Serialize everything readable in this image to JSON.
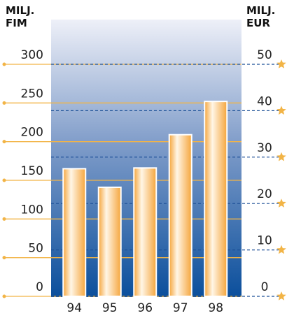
{
  "chart_data": {
    "type": "bar",
    "ylabel": [
      "MILJ.",
      "FIM"
    ],
    "y2label": [
      "MILJ.",
      "EUR"
    ],
    "categories": [
      "94",
      "95",
      "96",
      "97",
      "98"
    ],
    "series": [
      {
        "color": "#f5a53c",
        "values": [
          165,
          141,
          166,
          209,
          252
        ]
      }
    ],
    "ylim": [
      0,
      300
    ],
    "yticks": [
      0,
      50,
      100,
      150,
      200,
      250,
      300
    ],
    "y2lim": [
      0,
      50
    ],
    "y2ticks": [
      0,
      10,
      20,
      30,
      40,
      50
    ],
    "grid_color": "#f2b446",
    "grid2_color": "#1b4f96"
  }
}
